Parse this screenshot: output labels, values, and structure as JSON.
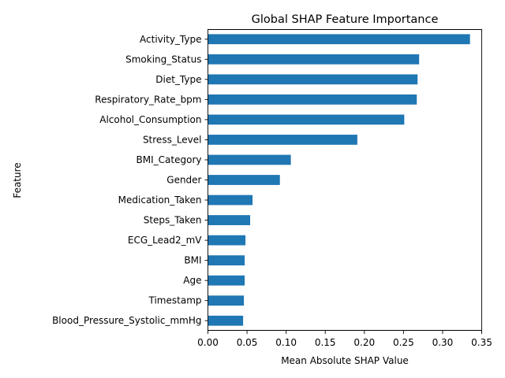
{
  "chart_data": {
    "type": "bar",
    "orientation": "horizontal",
    "title": "Global SHAP Feature Importance",
    "xlabel": "Mean Absolute SHAP Value",
    "ylabel": "Feature",
    "xlim": [
      0,
      0.35
    ],
    "xticks": [
      "0.00",
      "0.05",
      "0.10",
      "0.15",
      "0.20",
      "0.25",
      "0.30",
      "0.35"
    ],
    "grid": false,
    "legend": "none",
    "bar_color": "#1f77b4",
    "categories": [
      "Activity_Type",
      "Smoking_Status",
      "Diet_Type",
      "Respiratory_Rate_bpm",
      "Alcohol_Consumption",
      "Stress_Level",
      "BMI_Category",
      "Gender",
      "Medication_Taken",
      "Steps_Taken",
      "ECG_Lead2_mV",
      "BMI",
      "Age",
      "Timestamp",
      "Blood_Pressure_Systolic_mmHg"
    ],
    "values": [
      0.335,
      0.27,
      0.268,
      0.267,
      0.251,
      0.191,
      0.106,
      0.092,
      0.057,
      0.054,
      0.048,
      0.047,
      0.047,
      0.046,
      0.045
    ]
  }
}
